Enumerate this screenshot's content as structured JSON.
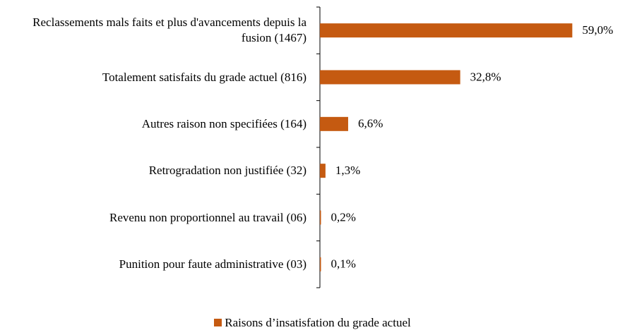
{
  "chart_data": {
    "type": "bar",
    "orientation": "horizontal",
    "categories": [
      "Reclassements mals faits et plus d'avancements depuis la fusion (1467)",
      "Totalement satisfaits du grade actuel (816)",
      "Autres raison non specifiées (164)",
      "Retrogradation non justifiée (32)",
      "Revenu non proportionnel au travail (06)",
      "Punition pour faute administrative (03)"
    ],
    "series": [
      {
        "name": "Raisons d’insatisfation du grade actuel",
        "color": "#c55a11",
        "values": [
          59.0,
          32.8,
          6.6,
          1.3,
          0.2,
          0.1
        ],
        "value_labels": [
          "59,0%",
          "32,8%",
          "6,6%",
          "1,3%",
          "0,2%",
          "0,1%"
        ]
      }
    ],
    "xlim": [
      0,
      70
    ],
    "legend": "bottom"
  }
}
